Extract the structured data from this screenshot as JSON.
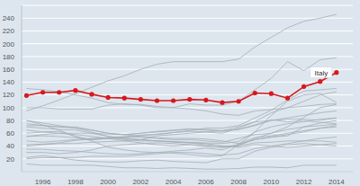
{
  "chart_data": {
    "type": "line",
    "x": [
      1995,
      1996,
      1997,
      1998,
      1999,
      2000,
      2001,
      2002,
      2003,
      2004,
      2005,
      2006,
      2007,
      2008,
      2009,
      2010,
      2011,
      2012,
      2013,
      2014
    ],
    "xlim": [
      1994.7,
      2015
    ],
    "xticks": [
      1996,
      1998,
      2000,
      2002,
      2004,
      2006,
      2008,
      2010,
      2012,
      2014
    ],
    "ylim": [
      0,
      260
    ],
    "yticks": [
      20,
      40,
      60,
      80,
      100,
      120,
      140,
      160,
      180,
      200,
      220,
      240
    ],
    "grid": true,
    "series": [
      {
        "color": "#a3adb5",
        "values": [
          95,
          103,
          112,
          122,
          132,
          142,
          150,
          160,
          168,
          172,
          172,
          172,
          172,
          176,
          195,
          210,
          225,
          235,
          240,
          246
        ]
      },
      {
        "color": "#a3adb5",
        "values": [
          100,
          100,
          98,
          98,
          98,
          104,
          106,
          104,
          100,
          100,
          106,
          104,
          104,
          110,
          128,
          146,
          172,
          158,
          175,
          178
        ]
      },
      {
        "color": "#a3adb5",
        "values": [
          130,
          128,
          125,
          120,
          115,
          108,
          105,
          105,
          102,
          100,
          98,
          95,
          90,
          88,
          95,
          97,
          100,
          102,
          105,
          106
        ]
      },
      {
        "color": "#a3adb5",
        "values": [
          80,
          76,
          72,
          68,
          62,
          55,
          52,
          50,
          48,
          47,
          46,
          45,
          44,
          47,
          62,
          70,
          75,
          78,
          82,
          84
        ]
      },
      {
        "color": "#a3adb5",
        "values": [
          72,
          72,
          70,
          68,
          65,
          60,
          58,
          60,
          62,
          64,
          66,
          65,
          63,
          66,
          72,
          80,
          84,
          88,
          92,
          95
        ]
      },
      {
        "color": "#a3adb5",
        "values": [
          55,
          58,
          60,
          60,
          60,
          59,
          58,
          60,
          63,
          65,
          67,
          66,
          64,
          66,
          73,
          81,
          78,
          80,
          77,
          75
        ]
      },
      {
        "color": "#a3adb5",
        "values": [
          42,
          43,
          45,
          49,
          51,
          53,
          55,
          57,
          59,
          61,
          63,
          62,
          60,
          68,
          78,
          92,
          100,
          110,
          120,
          125
        ]
      },
      {
        "color": "#a3adb5",
        "values": [
          60,
          62,
          63,
          55,
          50,
          52,
          48,
          45,
          42,
          40,
          42,
          40,
          38,
          40,
          52,
          60,
          70,
          85,
          100,
          105
        ]
      },
      {
        "color": "#a3adb5",
        "values": [
          80,
          73,
          65,
          55,
          48,
          38,
          34,
          31,
          30,
          29,
          27,
          24,
          25,
          42,
          62,
          88,
          110,
          120,
          122,
          108
        ]
      },
      {
        "color": "#a3adb5",
        "values": [
          55,
          56,
          55,
          53,
          50,
          52,
          53,
          56,
          58,
          61,
          64,
          68,
          68,
          72,
          84,
          96,
          112,
          126,
          128,
          130
        ]
      },
      {
        "color": "#a3adb5",
        "values": [
          70,
          68,
          66,
          65,
          60,
          55,
          50,
          48,
          48,
          47,
          45,
          42,
          40,
          40,
          45,
          46,
          48,
          48,
          48,
          46
        ]
      },
      {
        "color": "#a3adb5",
        "values": [
          30,
          30,
          28,
          30,
          34,
          40,
          42,
          44,
          45,
          44,
          42,
          40,
          38,
          42,
          50,
          54,
          58,
          62,
          68,
          72
        ]
      },
      {
        "color": "#a3adb5",
        "values": [
          20,
          22,
          22,
          22,
          24,
          24,
          24,
          26,
          28,
          30,
          30,
          28,
          26,
          28,
          36,
          40,
          44,
          48,
          52,
          54
        ]
      },
      {
        "color": "#a3adb5",
        "values": [
          75,
          72,
          70,
          70,
          65,
          60,
          58,
          55,
          53,
          52,
          52,
          51,
          48,
          44,
          53,
          56,
          60,
          64,
          68,
          70
        ]
      },
      {
        "color": "#a3adb5",
        "values": [
          35,
          35,
          33,
          32,
          30,
          28,
          27,
          28,
          30,
          32,
          34,
          37,
          34,
          43,
          50,
          54,
          56,
          70,
          76,
          80
        ]
      },
      {
        "color": "#a3adb5",
        "values": [
          12,
          10,
          10,
          10,
          10,
          8,
          6,
          6,
          5,
          6,
          5,
          4,
          4,
          5,
          7,
          7,
          6,
          10,
          10,
          10
        ]
      },
      {
        "color": "#a3adb5",
        "values": [
          48,
          46,
          48,
          50,
          52,
          53,
          54,
          54,
          52,
          50,
          50,
          48,
          46,
          52,
          58,
          60,
          66,
          70,
          72,
          74
        ]
      },
      {
        "color": "#a3adb5",
        "values": [
          40,
          42,
          44,
          44,
          46,
          47,
          48,
          50,
          56,
          58,
          60,
          62,
          64,
          70,
          78,
          80,
          82,
          82,
          80,
          84
        ]
      },
      {
        "color": "#a3adb5",
        "values": [
          22,
          25,
          22,
          18,
          16,
          15,
          15,
          17,
          18,
          16,
          15,
          14,
          20,
          20,
          32,
          38,
          42,
          44,
          42,
          40
        ]
      },
      {
        "color": "#a3adb5",
        "values": [
          65,
          62,
          60,
          58,
          55,
          52,
          52,
          50,
          48,
          46,
          45,
          44,
          40,
          38,
          42,
          40,
          38,
          40,
          42,
          44
        ]
      },
      {
        "name": "Italy",
        "color": "#d7191c",
        "marker": "circle",
        "values": [
          119,
          124,
          124,
          127,
          121,
          116,
          115,
          113,
          111,
          111,
          113,
          112,
          108,
          110,
          123,
          122,
          115,
          133,
          141,
          155
        ]
      }
    ]
  }
}
